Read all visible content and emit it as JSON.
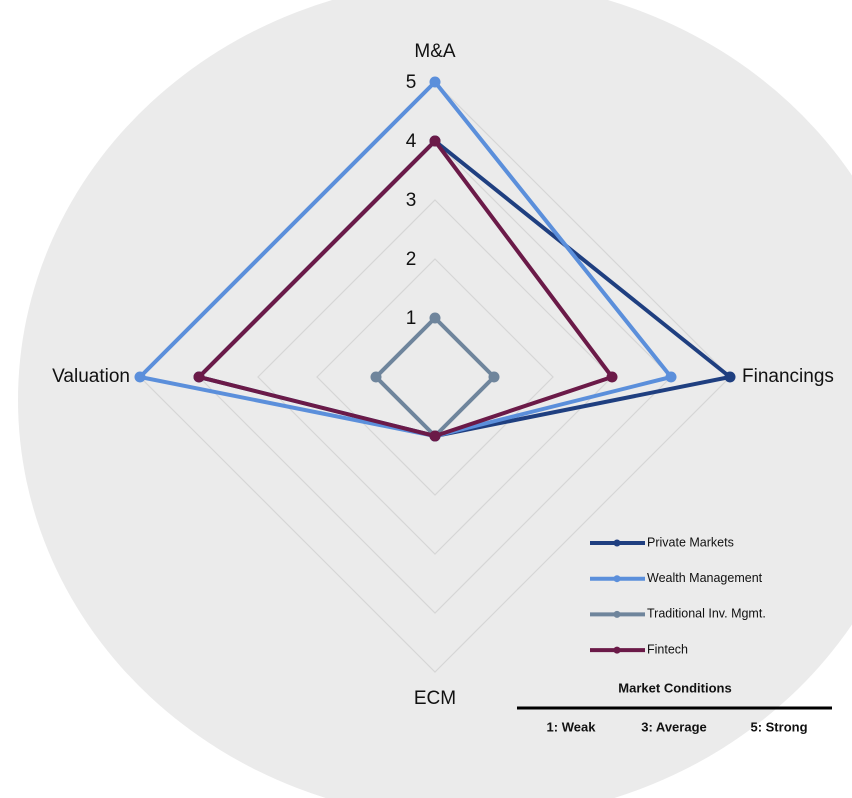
{
  "chart_data": {
    "type": "radar",
    "categories": [
      "M&A",
      "Financings",
      "ECM",
      "Valuation"
    ],
    "series": [
      {
        "name": "Private Markets",
        "color": "#1f3f80",
        "values": [
          4,
          5,
          1,
          4
        ]
      },
      {
        "name": "Wealth Management",
        "color": "#5b8fdb",
        "values": [
          5,
          4,
          1,
          5
        ]
      },
      {
        "name": "Traditional Inv. Mgmt.",
        "color": "#6f859c",
        "values": [
          1,
          1,
          1,
          1
        ]
      },
      {
        "name": "Fintech",
        "color": "#6b1a48",
        "values": [
          4,
          3,
          1,
          4
        ]
      }
    ],
    "rlim": [
      0,
      5
    ],
    "rticks": [
      1,
      2,
      3,
      4,
      5
    ],
    "grid": true,
    "legend": "bottom-right",
    "note": {
      "title": "Market Conditions",
      "items": [
        "1: Weak",
        "3: Average",
        "5: Strong"
      ]
    }
  }
}
